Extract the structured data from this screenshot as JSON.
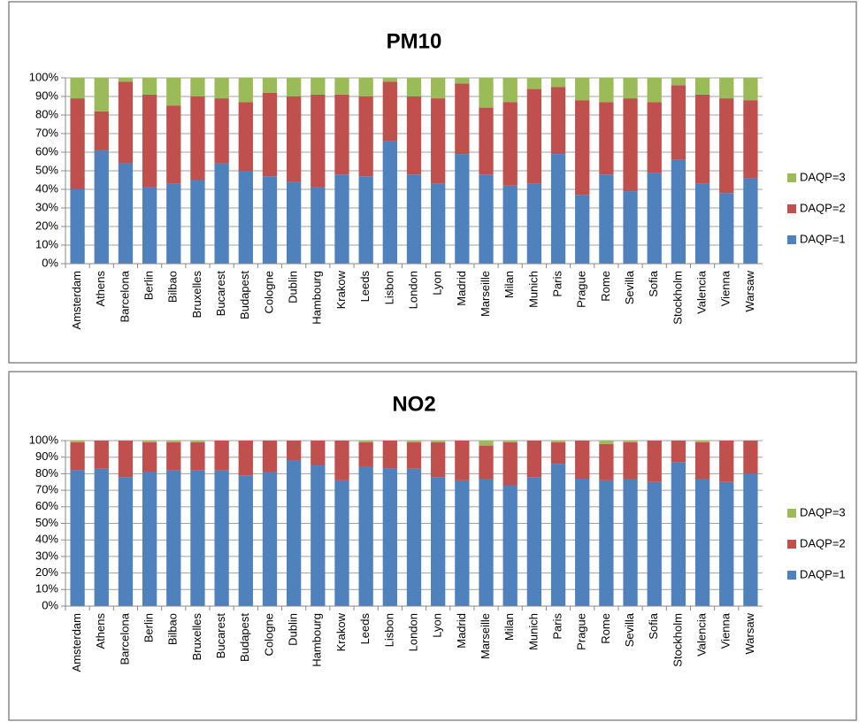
{
  "chart_data": [
    {
      "type": "bar",
      "stacked": true,
      "title": "PM10",
      "categories": [
        "Amsterdam",
        "Athens",
        "Barcelona",
        "Berlin",
        "Bilbao",
        "Bruxelles",
        "Bucarest",
        "Budapest",
        "Cologne",
        "Dublin",
        "Hambourg",
        "Krakow",
        "Leeds",
        "Lisbon",
        "London",
        "Lyon",
        "Madrid",
        "Marseille",
        "Milan",
        "Munich",
        "Paris",
        "Prague",
        "Rome",
        "Sevilla",
        "Sofia",
        "Stockholm",
        "Valencia",
        "Vienna",
        "Warsaw"
      ],
      "series": [
        {
          "name": "DAQP=1",
          "color": "#4f81bd",
          "values": [
            40,
            61,
            54,
            41,
            43,
            45,
            54,
            50,
            47,
            44,
            41,
            48,
            47,
            66,
            48,
            43,
            59,
            48,
            42,
            43,
            59,
            37,
            48,
            39,
            49,
            56,
            43,
            38,
            46
          ]
        },
        {
          "name": "DAQP=2",
          "color": "#c0504d",
          "values": [
            49,
            21,
            44,
            50,
            42,
            45,
            35,
            37,
            45,
            46,
            50,
            43,
            43,
            32,
            42,
            46,
            38,
            36,
            45,
            51,
            36,
            51,
            39,
            50,
            38,
            40,
            48,
            51,
            42
          ]
        },
        {
          "name": "DAQP=3",
          "color": "#9bbb59",
          "values": [
            11,
            18,
            2,
            9,
            15,
            10,
            11,
            13,
            8,
            10,
            9,
            9,
            10,
            2,
            10,
            11,
            3,
            16,
            13,
            6,
            5,
            12,
            13,
            11,
            13,
            4,
            9,
            11,
            12
          ]
        }
      ],
      "ylim": [
        0,
        100
      ],
      "yticks": [
        {
          "value": 0,
          "label": "0%"
        },
        {
          "value": 10,
          "label": "10%"
        },
        {
          "value": 20,
          "label": "20%"
        },
        {
          "value": 30,
          "label": "30%"
        },
        {
          "value": 40,
          "label": "40%"
        },
        {
          "value": 50,
          "label": "50%"
        },
        {
          "value": 60,
          "label": "60%"
        },
        {
          "value": 70,
          "label": "70%"
        },
        {
          "value": 80,
          "label": "80%"
        },
        {
          "value": 90,
          "label": "90%"
        },
        {
          "value": 100,
          "label": "100%"
        }
      ],
      "grid": true,
      "legend": "right"
    },
    {
      "type": "bar",
      "stacked": true,
      "title": "NO2",
      "categories": [
        "Amsterdam",
        "Athens",
        "Barcelona",
        "Berlin",
        "Bilbao",
        "Bruxelles",
        "Bucarest",
        "Budapest",
        "Cologne",
        "Dublin",
        "Hambourg",
        "Krakow",
        "Leeds",
        "Lisbon",
        "London",
        "Lyon",
        "Madrid",
        "Marseille",
        "Milan",
        "Munich",
        "Paris",
        "Prague",
        "Rome",
        "Sevilla",
        "Sofia",
        "Stockholm",
        "Valencia",
        "Vienna",
        "Warsaw"
      ],
      "series": [
        {
          "name": "DAQP=1",
          "color": "#4f81bd",
          "values": [
            82,
            83,
            78,
            81,
            82,
            82,
            82,
            79,
            81,
            88,
            85,
            76,
            84,
            83,
            83,
            78,
            76,
            77,
            73,
            78,
            86,
            77,
            76,
            77,
            75,
            87,
            77,
            75,
            80
          ]
        },
        {
          "name": "DAQP=2",
          "color": "#c0504d",
          "values": [
            17,
            17,
            22,
            18,
            17,
            17,
            18,
            21,
            19,
            12,
            15,
            24,
            15,
            17,
            16,
            21,
            24,
            20,
            26,
            22,
            13,
            23,
            22,
            22,
            25,
            13,
            22,
            25,
            20
          ]
        },
        {
          "name": "DAQP=3",
          "color": "#9bbb59",
          "values": [
            1,
            0,
            0,
            1,
            1,
            1,
            0,
            0,
            0,
            0,
            0,
            0,
            1,
            0,
            1,
            1,
            0,
            3,
            1,
            0,
            1,
            0,
            2,
            1,
            0,
            0,
            1,
            0,
            0
          ]
        }
      ],
      "ylim": [
        0,
        100
      ],
      "yticks": [
        {
          "value": 0,
          "label": "0%"
        },
        {
          "value": 10,
          "label": "10%"
        },
        {
          "value": 20,
          "label": "20%"
        },
        {
          "value": 30,
          "label": "30%"
        },
        {
          "value": 40,
          "label": "40%"
        },
        {
          "value": 50,
          "label": "50%"
        },
        {
          "value": 60,
          "label": "60%"
        },
        {
          "value": 70,
          "label": "70%"
        },
        {
          "value": 80,
          "label": "80%"
        },
        {
          "value": 90,
          "label": "90%"
        },
        {
          "value": 100,
          "label": "100%"
        }
      ],
      "grid": true,
      "legend": "right"
    }
  ]
}
